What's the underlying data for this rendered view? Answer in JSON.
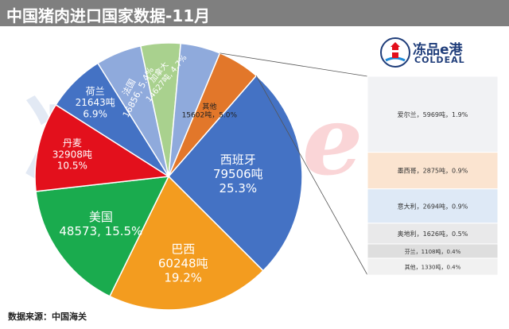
{
  "header": {
    "title": "中国猪肉进口国家数据-11月"
  },
  "watermark": {
    "chars": [
      "冻",
      "品",
      "e",
      "港"
    ]
  },
  "logo": {
    "name_cn": "冻品e港",
    "name_en": "COLDEAL",
    "icon": "lighthouse-icon"
  },
  "source": "数据来源：中国海关",
  "chart_data": {
    "type": "pie",
    "slices": [
      {
        "label": "西班牙",
        "value_text": "79506吨",
        "pct_text": "25.3%",
        "value": 79506,
        "pct": 25.3,
        "color": "#4472c4"
      },
      {
        "label": "巴西",
        "value_text": "60248吨",
        "pct_text": "19.2%",
        "value": 60248,
        "pct": 19.2,
        "color": "#f39c1f"
      },
      {
        "label": "美国",
        "value_text": "48573",
        "pct_text": "15.5%",
        "value": 48573,
        "pct": 15.5,
        "color": "#1aab4e"
      },
      {
        "label": "丹麦",
        "value_text": "32908吨",
        "pct_text": "10.5%",
        "value": 32908,
        "pct": 10.5,
        "color": "#e3101c"
      },
      {
        "label": "荷兰",
        "value_text": "21643吨",
        "pct_text": "6.9%",
        "value": 21643,
        "pct": 6.9,
        "color": "#4472c4"
      },
      {
        "label": "法国",
        "value_text": "16856",
        "pct_text": "5.4%",
        "value": 16856,
        "pct": 5.4,
        "color": "#8faadc"
      },
      {
        "label": "加拿大",
        "value_text": "14627吨",
        "pct_text": "4.7%",
        "value": 14627,
        "pct": 4.7,
        "color": "#a9d18e"
      },
      {
        "label": "",
        "value_text": "",
        "pct_text": "",
        "value": 14700,
        "pct": 4.7,
        "color": "#8faadc"
      },
      {
        "label": "其他",
        "value_text": "15602吨",
        "pct_text": "5.0%",
        "value": 15602,
        "pct": 5.0,
        "color": "#e2772a"
      }
    ],
    "breakdown": {
      "items": [
        {
          "text": "爱尔兰，5969吨，1.9%",
          "value": 5969,
          "pct": 1.9,
          "color": "#f1f2f4"
        },
        {
          "text": "墨西哥，2875吨，0.9%",
          "value": 2875,
          "pct": 0.9,
          "color": "#fbe4d0"
        },
        {
          "text": "意大利，2694吨，0.9%",
          "value": 2694,
          "pct": 0.9,
          "color": "#dee9f6"
        },
        {
          "text": "奥地利，1626吨，0.5%",
          "value": 1626,
          "pct": 0.5,
          "color": "#e9e9ea"
        },
        {
          "text": "芬兰，1108吨，0.4%",
          "value": 1108,
          "pct": 0.4,
          "color": "#dedede"
        },
        {
          "text": "其他，1330吨，0.4%",
          "value": 1330,
          "pct": 0.4,
          "color": "#f1f1f1"
        }
      ]
    }
  }
}
